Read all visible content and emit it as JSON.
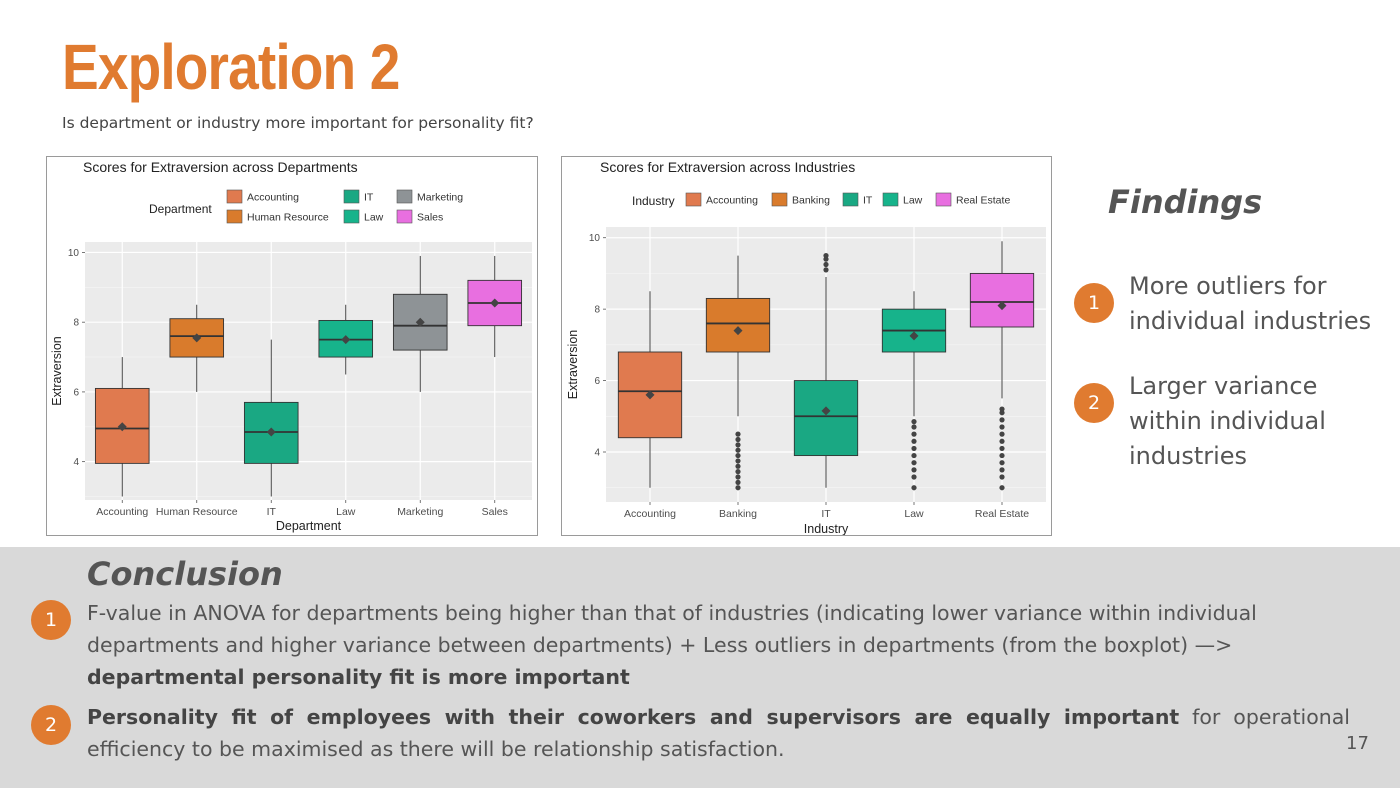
{
  "title": "Exploration 2",
  "subtitle": "Is department or industry more important for personality fit?",
  "findings": {
    "title": "Findings",
    "items": [
      {
        "num": "1",
        "text": "More outliers for individual industries"
      },
      {
        "num": "2",
        "text": "Larger variance within individual industries"
      }
    ]
  },
  "conclusion": {
    "title": "Conclusion",
    "items": [
      {
        "num": "1",
        "text": "F-value in ANOVA for departments being higher than that of industries (indicating lower variance within individual departments and higher variance between departments) + Less outliers in departments (from the boxplot) —>",
        "bold": "departmental personality fit is more important"
      },
      {
        "num": "2",
        "bold": "Personality fit of employees with their coworkers and supervisors are equally important",
        "text": "for operational efficiency to be maximised as there will be relationship satisfaction."
      }
    ]
  },
  "page_number": "17",
  "colors": {
    "accent": "#e07b30",
    "panel_bg": "#ebebeb",
    "grid": "#ffffff"
  },
  "chart_data": [
    {
      "type": "boxplot",
      "title": "Scores for Extraversion across Departments",
      "xlabel": "Department",
      "ylabel": "Extraversion",
      "ylim": [
        2.9,
        10.3
      ],
      "yticks": [
        4,
        6,
        8,
        10
      ],
      "legend": {
        "title": "Department",
        "placement": "top",
        "entries": [
          "Accounting",
          "Human Resource",
          "IT",
          "Law",
          "Marketing",
          "Sales"
        ]
      },
      "categories": [
        "Accounting",
        "Human Resource",
        "IT",
        "Law",
        "Marketing",
        "Sales"
      ],
      "colors": [
        "#e07a4f",
        "#d97b2c",
        "#1aa883",
        "#17b38b",
        "#8e9396",
        "#e86fe0"
      ],
      "boxes": [
        {
          "min": 3.0,
          "q1": 3.95,
          "median": 4.95,
          "q3": 6.1,
          "max": 7.0,
          "mean": 5.0,
          "outliers": []
        },
        {
          "min": 6.0,
          "q1": 7.0,
          "median": 7.6,
          "q3": 8.1,
          "max": 8.5,
          "mean": 7.55,
          "outliers": []
        },
        {
          "min": 3.0,
          "q1": 3.95,
          "median": 4.85,
          "q3": 5.7,
          "max": 7.5,
          "mean": 4.85,
          "outliers": []
        },
        {
          "min": 6.5,
          "q1": 7.0,
          "median": 7.5,
          "q3": 8.05,
          "max": 8.5,
          "mean": 7.5,
          "outliers": []
        },
        {
          "min": 6.0,
          "q1": 7.2,
          "median": 7.9,
          "q3": 8.8,
          "max": 9.9,
          "mean": 8.0,
          "outliers": []
        },
        {
          "min": 7.0,
          "q1": 7.9,
          "median": 8.55,
          "q3": 9.2,
          "max": 9.9,
          "mean": 8.55,
          "outliers": []
        }
      ]
    },
    {
      "type": "boxplot",
      "title": "Scores for Extraversion across Industries",
      "xlabel": "Industry",
      "ylabel": "Extraversion",
      "ylim": [
        2.6,
        10.3
      ],
      "yticks": [
        4,
        6,
        8,
        10
      ],
      "legend": {
        "title": "Industry",
        "placement": "top",
        "entries": [
          "Accounting",
          "Banking",
          "IT",
          "Law",
          "Real Estate"
        ]
      },
      "categories": [
        "Accounting",
        "Banking",
        "IT",
        "Law",
        "Real Estate"
      ],
      "colors": [
        "#e07a4f",
        "#d97b2c",
        "#1aa883",
        "#17b38b",
        "#e86fe0"
      ],
      "boxes": [
        {
          "min": 3.0,
          "q1": 4.4,
          "median": 5.7,
          "q3": 6.8,
          "max": 8.5,
          "mean": 5.6,
          "outliers": []
        },
        {
          "min": 5.0,
          "q1": 6.8,
          "median": 7.6,
          "q3": 8.3,
          "max": 9.5,
          "mean": 7.4,
          "outliers": [
            3.0,
            3.15,
            3.3,
            3.45,
            3.6,
            3.75,
            3.9,
            4.05,
            4.2,
            4.35,
            4.5
          ]
        },
        {
          "min": 3.0,
          "q1": 3.9,
          "median": 5.0,
          "q3": 6.0,
          "max": 8.9,
          "mean": 5.15,
          "outliers": [
            9.1,
            9.25,
            9.4,
            9.5
          ]
        },
        {
          "min": 5.0,
          "q1": 6.8,
          "median": 7.4,
          "q3": 8.0,
          "max": 8.5,
          "mean": 7.25,
          "outliers": [
            3.0,
            3.3,
            3.5,
            3.7,
            3.9,
            4.1,
            4.3,
            4.5,
            4.7,
            4.85
          ]
        },
        {
          "min": 5.5,
          "q1": 7.5,
          "median": 8.2,
          "q3": 9.0,
          "max": 9.9,
          "mean": 8.1,
          "outliers": [
            3.0,
            3.3,
            3.5,
            3.7,
            3.9,
            4.1,
            4.3,
            4.5,
            4.7,
            4.9,
            5.1,
            5.2
          ]
        }
      ]
    }
  ]
}
